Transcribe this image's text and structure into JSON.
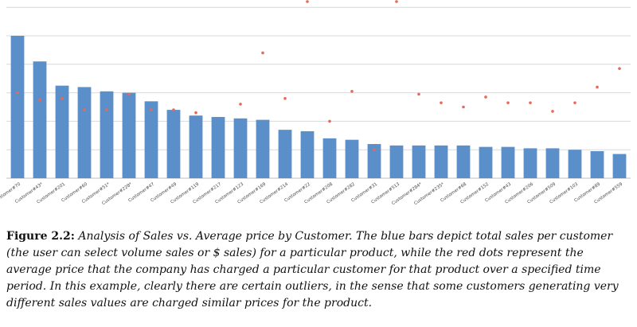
{
  "chart_data": {
    "type": "bar",
    "categories": [
      "Customer#70",
      "Customer#43*",
      "Customer#201",
      "Customer#60",
      "Customer#51*",
      "Customer#228*",
      "Customer#47",
      "Customer#49",
      "Customer#119",
      "Customer#217",
      "Customer#123",
      "Customer#169",
      "Customer#214",
      "Customer#22",
      "Customer#208",
      "Customer#282",
      "Customer#31",
      "Customer#513",
      "Customer#284*",
      "Customer#235*",
      "Customer#68",
      "Customer#152",
      "Customer#43",
      "Customer#206",
      "Customer#509",
      "Customer#103",
      "Customer#89",
      "Customer#559"
    ],
    "series": [
      {
        "type": "bar",
        "color": "#5b8fc9",
        "values": [
          100,
          82,
          65,
          64,
          61,
          60,
          54,
          48,
          44,
          43,
          42,
          41,
          34,
          33,
          28,
          27,
          24,
          23,
          23,
          23,
          23,
          22,
          22,
          21,
          21,
          20,
          19,
          17
        ]
      },
      {
        "type": "scatter",
        "color": "#e8685a",
        "values": [
          60,
          55,
          56,
          48,
          48,
          59,
          48,
          48,
          46,
          null,
          52,
          88,
          56,
          126,
          40,
          61,
          20,
          125,
          59,
          53,
          50,
          57,
          53,
          53,
          47,
          53,
          64,
          77
        ]
      }
    ],
    "ylim": [
      0,
      125
    ],
    "grid": true,
    "xlabel": "",
    "ylabel": ""
  },
  "caption": {
    "label": "Figure 2.2:",
    "text": "Analysis of Sales vs. Average price by Customer. The blue bars depict total sales per customer (the user can select volume sales or $ sales) for a particular product, while the red dots represent the average price that the company has charged a particular customer for that product over a specified time period. In this example, clearly there are certain outliers, in the sense that some customers generating very different sales values are charged similar prices for the product."
  }
}
